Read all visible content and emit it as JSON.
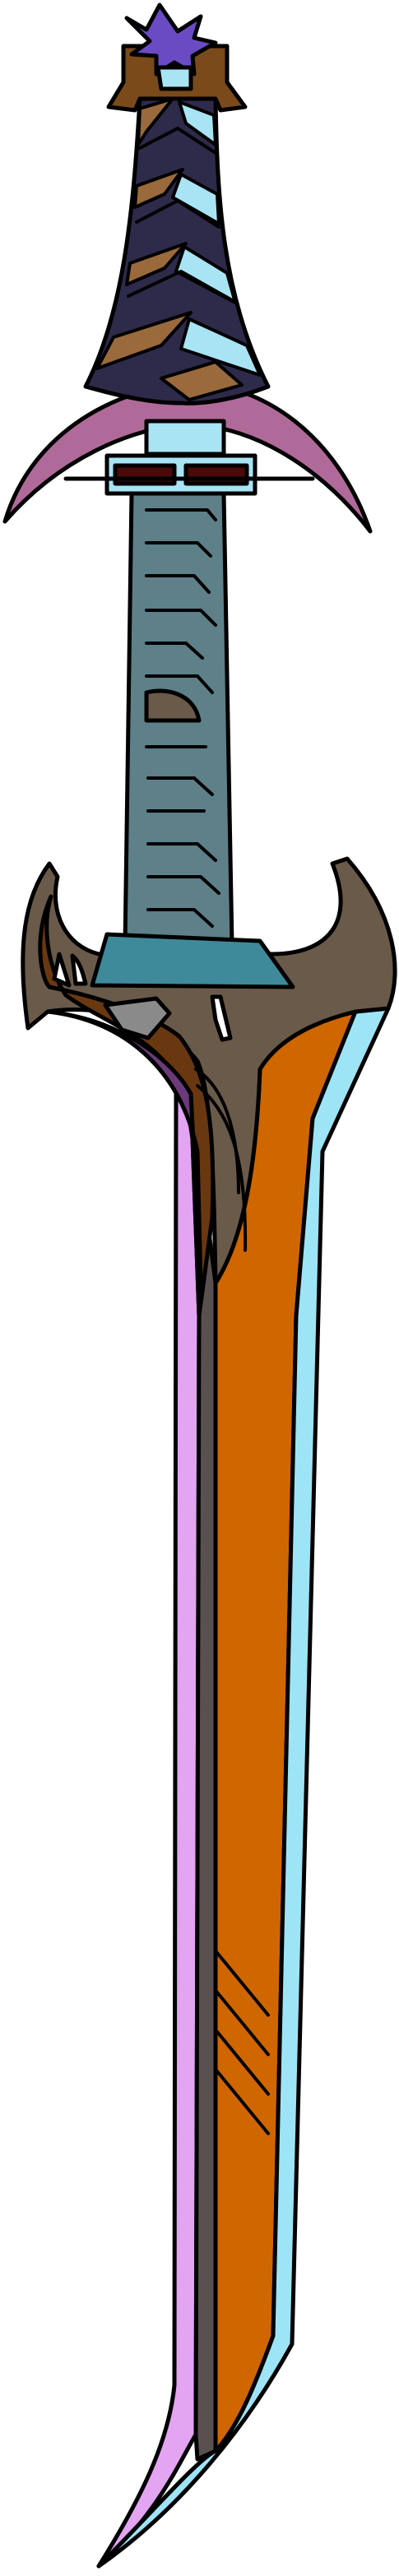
{
  "image": {
    "subject": "sword-illustration",
    "colors": {
      "outline": "#000000",
      "pommel_purple": "#6a4bc4",
      "pommel_brown": "#7a4a1a",
      "grip_dark": "#2e2a4a",
      "grip_brown": "#9a6a3c",
      "grip_light_blue": "#a8e4f4",
      "crossguard_pink": "#b06a9a",
      "tang_gray_blue": "#5e8088",
      "collar_teal": "#3e8a9a",
      "guard_taupe": "#6a5a4a",
      "guard_brown": "#6a3810",
      "guard_purple": "#6a3a7a",
      "blade_orange": "#d06600",
      "blade_cyan": "#9de4f6",
      "blade_lavender": "#e3a4f2",
      "blade_spine_gray": "#5b5050"
    }
  }
}
